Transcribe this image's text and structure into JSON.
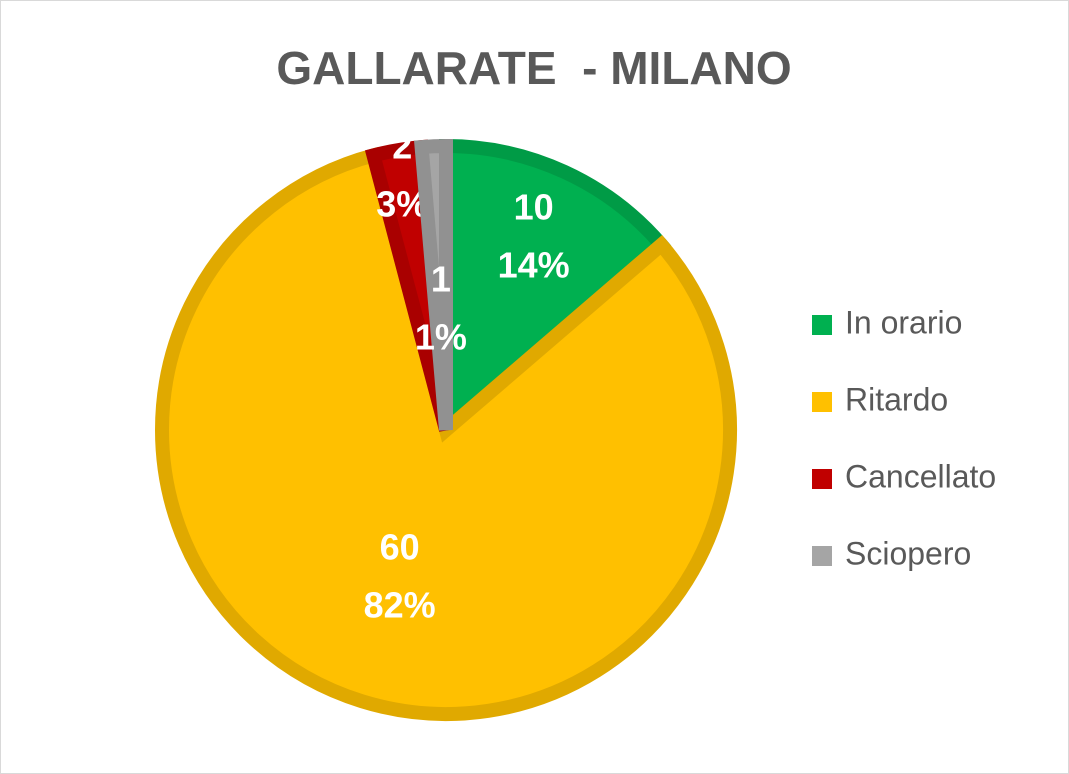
{
  "chart_data": {
    "type": "pie",
    "title": "GALLARATE  - MILANO",
    "categories": [
      "In orario",
      "Ritardo",
      "Cancellato",
      "Sciopero"
    ],
    "values": [
      10,
      60,
      2,
      1
    ],
    "percent_labels": [
      "14%",
      "82%",
      "3%",
      "1%"
    ],
    "colors": [
      "#00b050",
      "#ffc000",
      "#c00000",
      "#a5a5a5"
    ],
    "legend": "right"
  }
}
